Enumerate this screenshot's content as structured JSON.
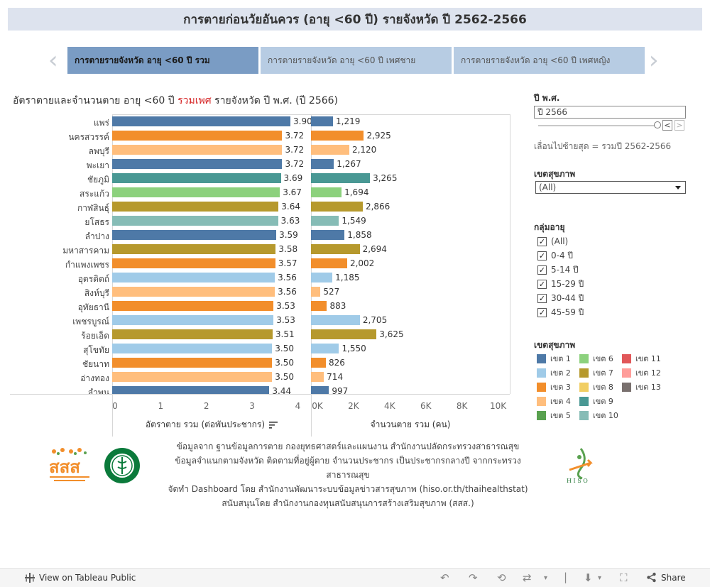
{
  "title": "การตายก่อนวัยอันควร (อายุ <60 ปี) รายจังหวัด ปี 2562-2566",
  "tabs": [
    {
      "label": "การตายรายจังหวัด อายุ <60 ปี รวม",
      "active": true
    },
    {
      "label": "การตายรายจังหวัด อายุ <60 ปี เพศชาย",
      "active": false
    },
    {
      "label": "การตายรายจังหวัด อายุ <60 ปี เพศหญิง",
      "active": false
    }
  ],
  "nav": {
    "prev_icon": "chevron-left-icon",
    "next_icon": "chevron-right-icon"
  },
  "chart_title": {
    "before": "อัตราตายและจำนวนตาย อายุ <60 ปี ",
    "highlight": "รวมเพศ",
    "after": " รายจังหวัด ปี พ.ศ. (ปี 2566)"
  },
  "chart_data": [
    {
      "type": "bar",
      "orientation": "horizontal",
      "xlabel": "อัตราตาย รวม (ต่อพันประชากร)",
      "xlim": [
        0,
        4.35
      ],
      "ticks": [
        "0",
        "1",
        "2",
        "3",
        "4"
      ],
      "categories": [
        "แพร่",
        "นครสวรรค์",
        "ลพบุรี",
        "พะเยา",
        "ชัยภูมิ",
        "สระแก้ว",
        "กาฬสินธุ์",
        "ยโสธร",
        "ลำปาง",
        "มหาสารคาม",
        "กำแพงเพชร",
        "อุตรดิตถ์",
        "สิงห์บุรี",
        "อุทัยธานี",
        "เพชรบูรณ์",
        "ร้อยเอ็ด",
        "สุโขทัย",
        "ชัยนาท",
        "อ่างทอง",
        "ลำพูน"
      ],
      "values": [
        3.9,
        3.72,
        3.72,
        3.72,
        3.69,
        3.67,
        3.64,
        3.63,
        3.59,
        3.58,
        3.57,
        3.56,
        3.56,
        3.53,
        3.53,
        3.51,
        3.5,
        3.5,
        3.5,
        3.44
      ],
      "labels": [
        "3.90",
        "3.72",
        "3.72",
        "3.72",
        "3.69",
        "3.67",
        "3.64",
        "3.63",
        "3.59",
        "3.58",
        "3.57",
        "3.56",
        "3.56",
        "3.53",
        "3.53",
        "3.51",
        "3.50",
        "3.50",
        "3.50",
        "3.44"
      ],
      "colors": [
        "#4e79a7",
        "#f28e2b",
        "#ffbe7d",
        "#4e79a7",
        "#499894",
        "#8cd17d",
        "#b6992d",
        "#86bcb6",
        "#4e79a7",
        "#b6992d",
        "#f28e2b",
        "#a0cbe8",
        "#ffbe7d",
        "#f28e2b",
        "#a0cbe8",
        "#b6992d",
        "#a0cbe8",
        "#f28e2b",
        "#ffbe7d",
        "#4e79a7"
      ]
    },
    {
      "type": "bar",
      "orientation": "horizontal",
      "xlabel": "จำนวนตาย รวม (คน)",
      "xlim": [
        0,
        11000
      ],
      "ticks": [
        "0K",
        "2K",
        "4K",
        "6K",
        "8K",
        "10K"
      ],
      "categories": [
        "แพร่",
        "นครสวรรค์",
        "ลพบุรี",
        "พะเยา",
        "ชัยภูมิ",
        "สระแก้ว",
        "กาฬสินธุ์",
        "ยโสธร",
        "ลำปาง",
        "มหาสารคาม",
        "กำแพงเพชร",
        "อุตรดิตถ์",
        "สิงห์บุรี",
        "อุทัยธานี",
        "เพชรบูรณ์",
        "ร้อยเอ็ด",
        "สุโขทัย",
        "ชัยนาท",
        "อ่างทอง",
        "ลำพูน"
      ],
      "values": [
        1219,
        2925,
        2120,
        1267,
        3265,
        1694,
        2866,
        1549,
        1858,
        2694,
        2002,
        1185,
        527,
        883,
        2705,
        3625,
        1550,
        826,
        714,
        997
      ],
      "labels": [
        "1,219",
        "2,925",
        "2,120",
        "1,267",
        "3,265",
        "1,694",
        "2,866",
        "1,549",
        "1,858",
        "2,694",
        "2,002",
        "1,185",
        "527",
        "883",
        "2,705",
        "3,625",
        "1,550",
        "826",
        "714",
        "997"
      ]
    }
  ],
  "filters": {
    "year": {
      "label": "ปี พ.ศ.",
      "value": "ปี 2566",
      "note": "เลื่อนไปซ้ายสุด = รวมปี 2562-2566",
      "prev": "<",
      "next": ">"
    },
    "region": {
      "label": "เขตสุขภาพ",
      "value": "(All)"
    },
    "age": {
      "label": "กลุ่มอายุ",
      "items": [
        "(All)",
        "0-4 ปี",
        "5-14 ปี",
        "15-29 ปี",
        "30-44 ปี",
        "45-59 ปี"
      ],
      "check": "✓"
    }
  },
  "legend": {
    "title": "เขตสุขภาพ",
    "items": [
      {
        "label": "เขต 1",
        "color": "#4e79a7"
      },
      {
        "label": "เขต 2",
        "color": "#a0cbe8"
      },
      {
        "label": "เขต 3",
        "color": "#f28e2b"
      },
      {
        "label": "เขต 4",
        "color": "#ffbe7d"
      },
      {
        "label": "เขต 5",
        "color": "#59a14f"
      },
      {
        "label": "เขต 6",
        "color": "#8cd17d"
      },
      {
        "label": "เขต 7",
        "color": "#b6992d"
      },
      {
        "label": "เขต 8",
        "color": "#f1ce63"
      },
      {
        "label": "เขต 9",
        "color": "#499894"
      },
      {
        "label": "เขต 10",
        "color": "#86bcb6"
      },
      {
        "label": "เขต 11",
        "color": "#e15759"
      },
      {
        "label": "เขต 12",
        "color": "#ff9d9a"
      },
      {
        "label": "เขต 13",
        "color": "#79706e"
      }
    ]
  },
  "credits": [
    "ข้อมูลจาก ฐานข้อมูลการตาย กองยุทธศาสตร์และแผนงาน สำนักงานปลัดกระทรวงสาธารณสุข",
    "ข้อมูลจำแนกตามจังหวัด ติดตามที่อยู่ผู้ตาย จำนวนประชากร เป็นประชากรกลางปี จากกระทรวงสาธารณสุข",
    "จัดทำ Dashboard โดย สำนักงานพัฒนาระบบข้อมูลข่าวสารสุขภาพ (hiso.or.th/thaihealthstat)",
    "สนับสนุนโดย สำนักงานกองทุนสนับสนุนการสร้างเสริมสุขภาพ (สสส.)"
  ],
  "logos": {
    "sss_text": "สสส",
    "hiso_text": "H I S O"
  },
  "footer": {
    "view_label": "View on Tableau Public",
    "share_label": "Share"
  }
}
